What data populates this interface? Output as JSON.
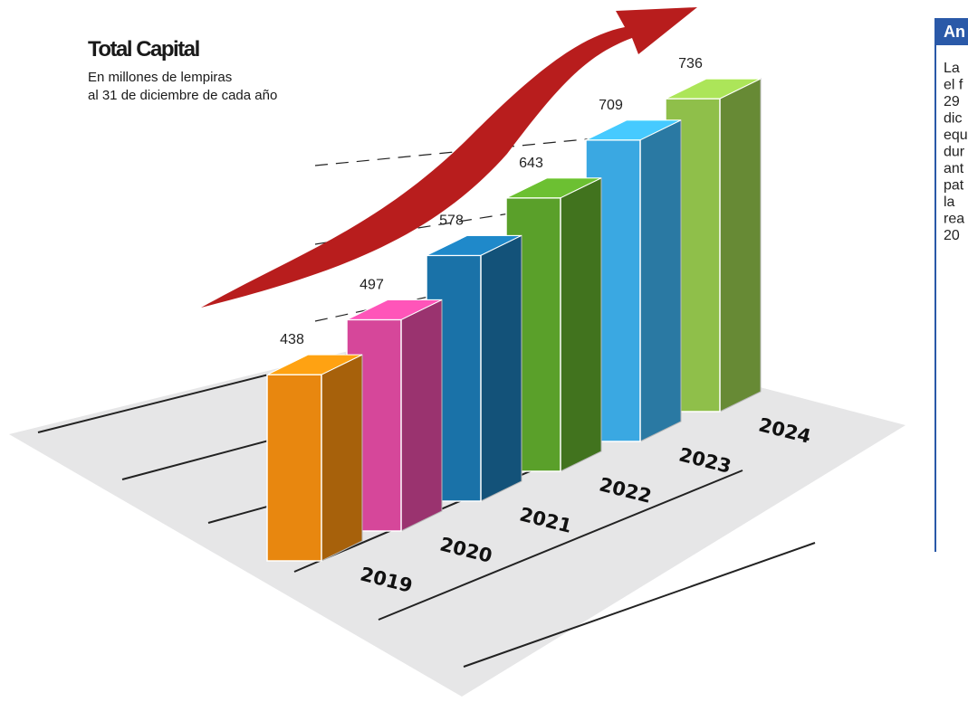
{
  "chart_data": {
    "type": "bar3d",
    "title": "Total Capital",
    "subtitle": [
      "En millones de lempiras",
      "al 31 de diciembre de cada año"
    ],
    "categories": [
      "2019",
      "2020",
      "2021",
      "2022",
      "2023",
      "2024"
    ],
    "values": [
      438,
      497,
      578,
      643,
      709,
      736
    ],
    "colors": [
      "#e8870f",
      "#d6479a",
      "#1a72a8",
      "#5aa02a",
      "#3aa8e2",
      "#8fbf4a"
    ]
  },
  "side_panel": {
    "title": "An",
    "lines": [
      "La",
      "el f",
      "29",
      "dic",
      "equ",
      "dur",
      "ant",
      "pat",
      "la",
      "rea",
      "20"
    ]
  }
}
